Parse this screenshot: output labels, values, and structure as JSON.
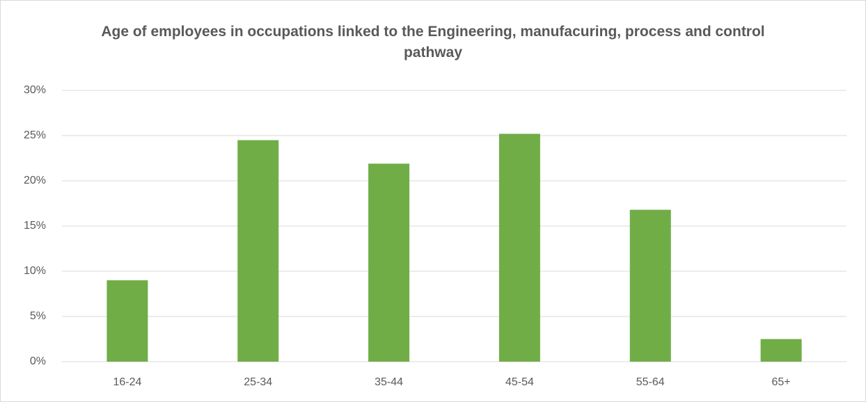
{
  "chart_data": {
    "type": "bar",
    "title": "Age of employees in occupations linked to the Engineering, manufacuring, process and control pathway",
    "categories": [
      "16-24",
      "25-34",
      "35-44",
      "45-54",
      "55-64",
      "65+"
    ],
    "values": [
      9.0,
      24.5,
      21.9,
      25.2,
      16.8,
      2.5
    ],
    "color": "#70ad47",
    "ylim": [
      0,
      30
    ],
    "yticks": [
      {
        "value": 0,
        "label": "0%"
      },
      {
        "value": 5,
        "label": "5%"
      },
      {
        "value": 10,
        "label": "10%"
      },
      {
        "value": 15,
        "label": "15%"
      },
      {
        "value": 20,
        "label": "20%"
      },
      {
        "value": 25,
        "label": "25%"
      },
      {
        "value": 30,
        "label": "30%"
      }
    ],
    "grid": true
  }
}
